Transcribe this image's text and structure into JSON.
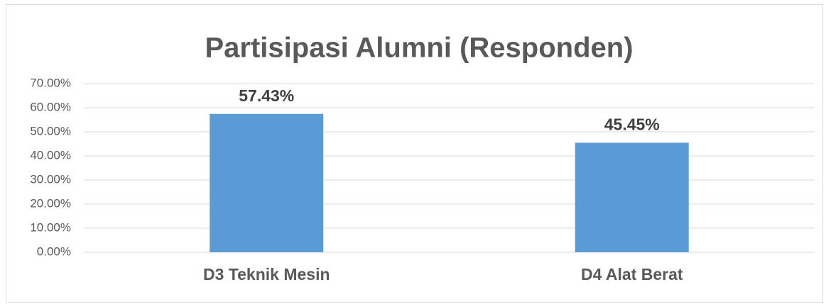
{
  "chart_data": {
    "type": "bar",
    "title": "Partisipasi Alumni (Responden)",
    "categories": [
      "D3 Teknik Mesin",
      "D4 Alat Berat"
    ],
    "values": [
      57.43,
      45.45
    ],
    "value_labels": [
      "57.43%",
      "45.45%"
    ],
    "color": "#5b9bd5",
    "ylim": [
      0,
      70
    ],
    "yticks": [
      {
        "value": 0,
        "label": "0.00%"
      },
      {
        "value": 10,
        "label": "10.00%"
      },
      {
        "value": 20,
        "label": "20.00%"
      },
      {
        "value": 30,
        "label": "30.00%"
      },
      {
        "value": 40,
        "label": "40.00%"
      },
      {
        "value": 50,
        "label": "50.00%"
      },
      {
        "value": 60,
        "label": "60.00%"
      },
      {
        "value": 70,
        "label": "70.00%"
      }
    ],
    "grid": true
  }
}
